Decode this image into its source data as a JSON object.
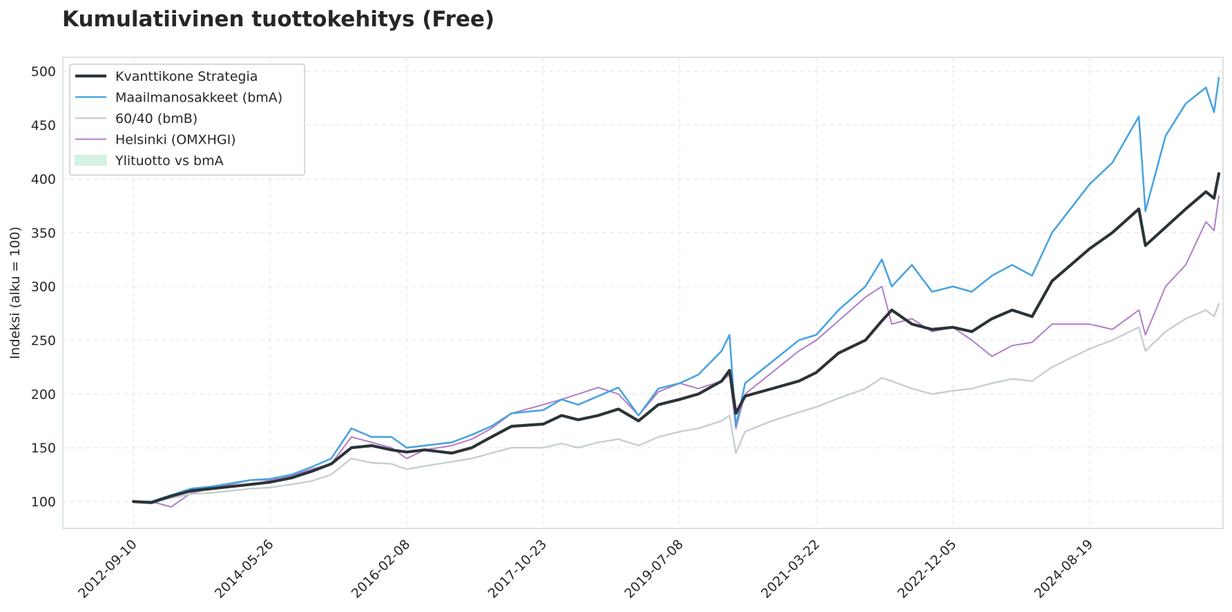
{
  "chart_data": {
    "type": "line",
    "title": "Kumulatiivinen tuottokehitys (Free)",
    "xlabel": "",
    "ylabel": "Indeksi (alku = 100)",
    "ylim": [
      75,
      513
    ],
    "yticks": [
      100,
      150,
      200,
      250,
      300,
      350,
      400,
      450,
      500
    ],
    "x_tick_labels": [
      "2012-09-10",
      "2014-05-26",
      "2016-02-08",
      "2017-10-23",
      "2019-07-08",
      "2021-03-22",
      "2022-12-05",
      "2024-08-19"
    ],
    "x_range": [
      "2011-10-24",
      "2026-04-20"
    ],
    "grid": true,
    "legend_position": "top-left",
    "series": [
      {
        "name": "Kvanttikone Strategia",
        "color": "#2b3337",
        "points": [
          [
            "2012-09-10",
            100
          ],
          [
            "2012-12-01",
            99
          ],
          [
            "2013-03-01",
            105
          ],
          [
            "2013-06-01",
            110
          ],
          [
            "2013-09-01",
            112
          ],
          [
            "2013-12-01",
            114
          ],
          [
            "2014-03-01",
            116
          ],
          [
            "2014-05-26",
            118
          ],
          [
            "2014-09-01",
            122
          ],
          [
            "2014-12-01",
            128
          ],
          [
            "2015-03-01",
            135
          ],
          [
            "2015-06-01",
            150
          ],
          [
            "2015-09-01",
            152
          ],
          [
            "2015-12-01",
            148
          ],
          [
            "2016-02-08",
            146
          ],
          [
            "2016-05-01",
            148
          ],
          [
            "2016-09-01",
            145
          ],
          [
            "2016-12-01",
            150
          ],
          [
            "2017-03-01",
            160
          ],
          [
            "2017-06-01",
            170
          ],
          [
            "2017-10-23",
            172
          ],
          [
            "2018-01-15",
            180
          ],
          [
            "2018-04-01",
            176
          ],
          [
            "2018-07-01",
            180
          ],
          [
            "2018-10-01",
            186
          ],
          [
            "2019-01-01",
            175
          ],
          [
            "2019-04-01",
            190
          ],
          [
            "2019-07-08",
            195
          ],
          [
            "2019-10-01",
            200
          ],
          [
            "2020-01-15",
            212
          ],
          [
            "2020-02-20",
            222
          ],
          [
            "2020-03-20",
            182
          ],
          [
            "2020-05-01",
            198
          ],
          [
            "2020-09-01",
            205
          ],
          [
            "2021-01-01",
            212
          ],
          [
            "2021-03-22",
            220
          ],
          [
            "2021-07-01",
            238
          ],
          [
            "2021-11-01",
            250
          ],
          [
            "2022-01-15",
            268
          ],
          [
            "2022-03-01",
            278
          ],
          [
            "2022-06-01",
            265
          ],
          [
            "2022-09-01",
            260
          ],
          [
            "2022-12-05",
            262
          ],
          [
            "2023-03-01",
            258
          ],
          [
            "2023-06-01",
            270
          ],
          [
            "2023-09-01",
            278
          ],
          [
            "2023-12-01",
            272
          ],
          [
            "2024-03-01",
            305
          ],
          [
            "2024-08-19",
            335
          ],
          [
            "2024-12-01",
            350
          ],
          [
            "2025-04-01",
            372
          ],
          [
            "2025-05-01",
            338
          ],
          [
            "2025-08-01",
            355
          ],
          [
            "2025-11-01",
            372
          ],
          [
            "2026-02-01",
            388
          ],
          [
            "2026-03-10",
            382
          ],
          [
            "2026-04-01",
            405
          ]
        ]
      },
      {
        "name": "Maailmanosakkeet (bmA)",
        "color": "#4aa3e0",
        "points": [
          [
            "2012-09-10",
            100
          ],
          [
            "2012-12-01",
            100
          ],
          [
            "2013-03-01",
            106
          ],
          [
            "2013-06-01",
            112
          ],
          [
            "2013-09-01",
            114
          ],
          [
            "2013-12-01",
            117
          ],
          [
            "2014-03-01",
            120
          ],
          [
            "2014-05-26",
            121
          ],
          [
            "2014-09-01",
            125
          ],
          [
            "2014-12-01",
            132
          ],
          [
            "2015-03-01",
            140
          ],
          [
            "2015-06-01",
            168
          ],
          [
            "2015-09-01",
            160
          ],
          [
            "2015-12-01",
            160
          ],
          [
            "2016-02-08",
            150
          ],
          [
            "2016-05-01",
            152
          ],
          [
            "2016-09-01",
            155
          ],
          [
            "2016-12-01",
            162
          ],
          [
            "2017-03-01",
            170
          ],
          [
            "2017-06-01",
            182
          ],
          [
            "2017-10-23",
            185
          ],
          [
            "2018-01-15",
            195
          ],
          [
            "2018-04-01",
            190
          ],
          [
            "2018-07-01",
            198
          ],
          [
            "2018-10-01",
            206
          ],
          [
            "2019-01-01",
            180
          ],
          [
            "2019-04-01",
            205
          ],
          [
            "2019-07-08",
            210
          ],
          [
            "2019-10-01",
            218
          ],
          [
            "2020-01-15",
            240
          ],
          [
            "2020-02-20",
            255
          ],
          [
            "2020-03-20",
            170
          ],
          [
            "2020-05-01",
            210
          ],
          [
            "2020-09-01",
            230
          ],
          [
            "2021-01-01",
            250
          ],
          [
            "2021-03-22",
            255
          ],
          [
            "2021-07-01",
            278
          ],
          [
            "2021-11-01",
            300
          ],
          [
            "2022-01-15",
            325
          ],
          [
            "2022-03-01",
            300
          ],
          [
            "2022-06-01",
            320
          ],
          [
            "2022-09-01",
            295
          ],
          [
            "2022-12-05",
            300
          ],
          [
            "2023-03-01",
            295
          ],
          [
            "2023-06-01",
            310
          ],
          [
            "2023-09-01",
            320
          ],
          [
            "2023-12-01",
            310
          ],
          [
            "2024-03-01",
            350
          ],
          [
            "2024-08-19",
            395
          ],
          [
            "2024-12-01",
            415
          ],
          [
            "2025-04-01",
            458
          ],
          [
            "2025-05-01",
            370
          ],
          [
            "2025-08-01",
            440
          ],
          [
            "2025-11-01",
            470
          ],
          [
            "2026-02-01",
            485
          ],
          [
            "2026-03-10",
            462
          ],
          [
            "2026-04-01",
            494
          ]
        ]
      },
      {
        "name": "60/40 (bmB)",
        "color": "#c6ced2",
        "points": [
          [
            "2012-09-10",
            100
          ],
          [
            "2012-12-01",
            100
          ],
          [
            "2013-03-01",
            103
          ],
          [
            "2013-06-01",
            107
          ],
          [
            "2013-09-01",
            108
          ],
          [
            "2013-12-01",
            110
          ],
          [
            "2014-03-01",
            112
          ],
          [
            "2014-05-26",
            113
          ],
          [
            "2014-09-01",
            116
          ],
          [
            "2014-12-01",
            119
          ],
          [
            "2015-03-01",
            125
          ],
          [
            "2015-06-01",
            140
          ],
          [
            "2015-09-01",
            136
          ],
          [
            "2015-12-01",
            135
          ],
          [
            "2016-02-08",
            130
          ],
          [
            "2016-05-01",
            133
          ],
          [
            "2016-09-01",
            137
          ],
          [
            "2016-12-01",
            140
          ],
          [
            "2017-03-01",
            145
          ],
          [
            "2017-06-01",
            150
          ],
          [
            "2017-10-23",
            150
          ],
          [
            "2018-01-15",
            154
          ],
          [
            "2018-04-01",
            150
          ],
          [
            "2018-07-01",
            155
          ],
          [
            "2018-10-01",
            158
          ],
          [
            "2019-01-01",
            152
          ],
          [
            "2019-04-01",
            160
          ],
          [
            "2019-07-08",
            165
          ],
          [
            "2019-10-01",
            168
          ],
          [
            "2020-01-15",
            175
          ],
          [
            "2020-02-20",
            180
          ],
          [
            "2020-03-20",
            145
          ],
          [
            "2020-05-01",
            165
          ],
          [
            "2020-09-01",
            175
          ],
          [
            "2021-01-01",
            183
          ],
          [
            "2021-03-22",
            188
          ],
          [
            "2021-07-01",
            196
          ],
          [
            "2021-11-01",
            205
          ],
          [
            "2022-01-15",
            215
          ],
          [
            "2022-03-01",
            212
          ],
          [
            "2022-06-01",
            205
          ],
          [
            "2022-09-01",
            200
          ],
          [
            "2022-12-05",
            203
          ],
          [
            "2023-03-01",
            205
          ],
          [
            "2023-06-01",
            210
          ],
          [
            "2023-09-01",
            214
          ],
          [
            "2023-12-01",
            212
          ],
          [
            "2024-03-01",
            225
          ],
          [
            "2024-08-19",
            242
          ],
          [
            "2024-12-01",
            250
          ],
          [
            "2025-04-01",
            262
          ],
          [
            "2025-05-01",
            240
          ],
          [
            "2025-08-01",
            258
          ],
          [
            "2025-11-01",
            270
          ],
          [
            "2026-02-01",
            278
          ],
          [
            "2026-03-10",
            272
          ],
          [
            "2026-04-01",
            284
          ]
        ]
      },
      {
        "name": "Helsinki (OMXHGI)",
        "color": "#b07cc6",
        "points": [
          [
            "2012-09-10",
            100
          ],
          [
            "2012-12-01",
            100
          ],
          [
            "2013-03-01",
            95
          ],
          [
            "2013-06-01",
            108
          ],
          [
            "2013-09-01",
            112
          ],
          [
            "2013-12-01",
            116
          ],
          [
            "2014-03-01",
            120
          ],
          [
            "2014-05-26",
            120
          ],
          [
            "2014-09-01",
            124
          ],
          [
            "2014-12-01",
            130
          ],
          [
            "2015-03-01",
            135
          ],
          [
            "2015-06-01",
            160
          ],
          [
            "2015-09-01",
            155
          ],
          [
            "2015-12-01",
            150
          ],
          [
            "2016-02-08",
            140
          ],
          [
            "2016-05-01",
            148
          ],
          [
            "2016-09-01",
            152
          ],
          [
            "2016-12-01",
            158
          ],
          [
            "2017-03-01",
            168
          ],
          [
            "2017-06-01",
            182
          ],
          [
            "2017-10-23",
            190
          ],
          [
            "2018-01-15",
            195
          ],
          [
            "2018-04-01",
            200
          ],
          [
            "2018-07-01",
            206
          ],
          [
            "2018-10-01",
            200
          ],
          [
            "2019-01-01",
            180
          ],
          [
            "2019-04-01",
            202
          ],
          [
            "2019-07-08",
            210
          ],
          [
            "2019-10-01",
            205
          ],
          [
            "2020-01-15",
            212
          ],
          [
            "2020-02-20",
            218
          ],
          [
            "2020-03-20",
            168
          ],
          [
            "2020-05-01",
            200
          ],
          [
            "2020-09-01",
            220
          ],
          [
            "2021-01-01",
            240
          ],
          [
            "2021-03-22",
            250
          ],
          [
            "2021-07-01",
            268
          ],
          [
            "2021-11-01",
            290
          ],
          [
            "2022-01-15",
            300
          ],
          [
            "2022-03-01",
            265
          ],
          [
            "2022-06-01",
            270
          ],
          [
            "2022-09-01",
            258
          ],
          [
            "2022-12-05",
            262
          ],
          [
            "2023-03-01",
            250
          ],
          [
            "2023-06-01",
            235
          ],
          [
            "2023-09-01",
            245
          ],
          [
            "2023-12-01",
            248
          ],
          [
            "2024-03-01",
            265
          ],
          [
            "2024-08-19",
            265
          ],
          [
            "2024-12-01",
            260
          ],
          [
            "2025-04-01",
            278
          ],
          [
            "2025-05-01",
            255
          ],
          [
            "2025-08-01",
            300
          ],
          [
            "2025-11-01",
            320
          ],
          [
            "2026-02-01",
            360
          ],
          [
            "2026-03-10",
            352
          ],
          [
            "2026-04-01",
            384
          ]
        ]
      }
    ],
    "fill_series": {
      "name": "Ylituotto vs bmA",
      "color": "#d6f3e2"
    }
  }
}
